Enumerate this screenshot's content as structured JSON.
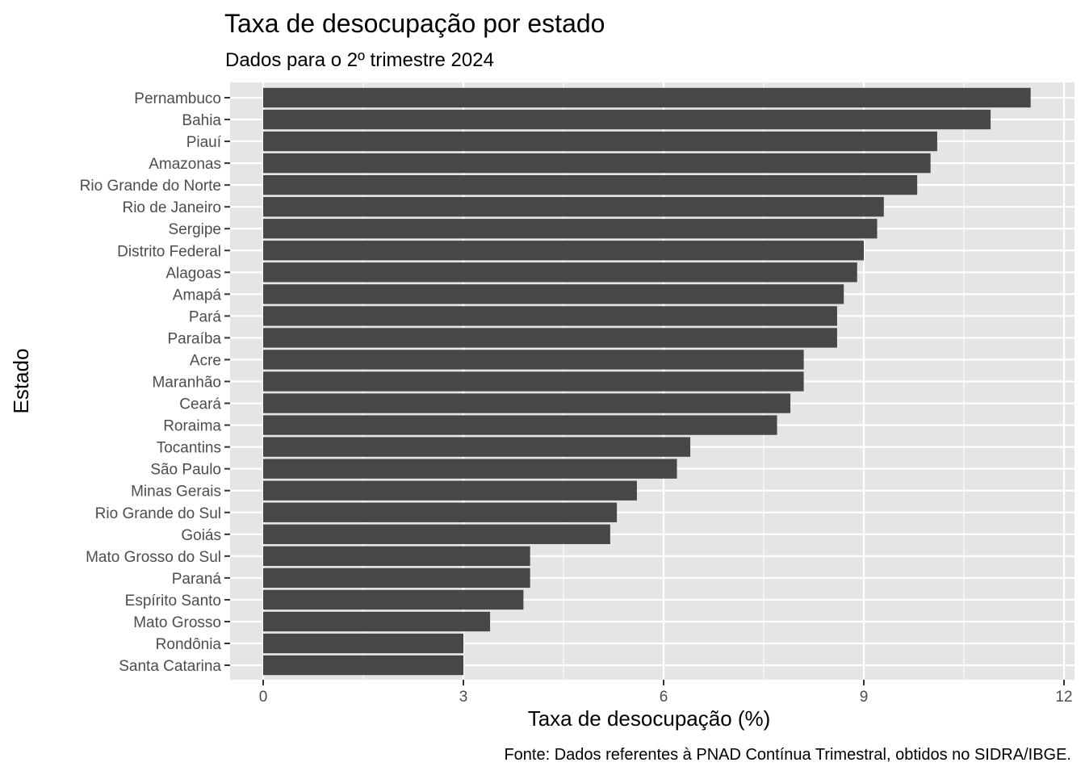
{
  "chart_data": {
    "type": "bar",
    "orientation": "horizontal",
    "title": "Taxa de desocupação por estado",
    "subtitle": "Dados para o 2º trimestre 2024",
    "xlabel": "Taxa de desocupação (%)",
    "ylabel": "Estado",
    "caption": "Fonte: Dados referentes à PNAD Contínua Trimestral, obtidos no SIDRA/IBGE.",
    "xlim": [
      0,
      12
    ],
    "x_ticks": [
      0,
      3,
      6,
      9,
      12
    ],
    "grid": true,
    "colors": {
      "bar": "#474747",
      "panel": "#e5e5e5",
      "grid": "#ffffff"
    },
    "categories": [
      "Pernambuco",
      "Bahia",
      "Piauí",
      "Amazonas",
      "Rio Grande do Norte",
      "Rio de Janeiro",
      "Sergipe",
      "Distrito Federal",
      "Alagoas",
      "Amapá",
      "Pará",
      "Paraíba",
      "Acre",
      "Maranhão",
      "Ceará",
      "Roraima",
      "Tocantins",
      "São Paulo",
      "Minas Gerais",
      "Rio Grande do Sul",
      "Goiás",
      "Mato Grosso do Sul",
      "Paraná",
      "Espírito Santo",
      "Mato Grosso",
      "Rondônia",
      "Santa Catarina"
    ],
    "values": [
      11.5,
      10.9,
      10.1,
      10.0,
      9.8,
      9.3,
      9.2,
      9.0,
      8.9,
      8.7,
      8.6,
      8.6,
      8.1,
      8.1,
      7.9,
      7.7,
      6.4,
      6.2,
      5.6,
      5.3,
      5.2,
      4.0,
      4.0,
      3.9,
      3.4,
      3.0,
      3.0
    ]
  }
}
